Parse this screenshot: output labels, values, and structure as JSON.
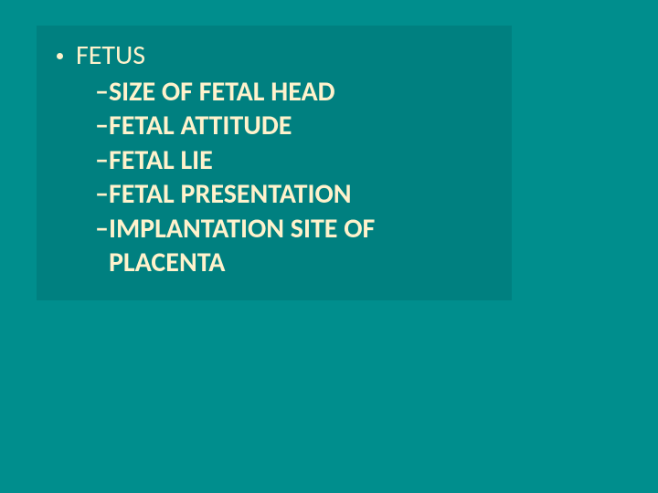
{
  "colors": {
    "background": "#008e8d",
    "box_background": "#008080",
    "text": "#fff2cc"
  },
  "typography": {
    "heading_fontsize": 30,
    "item_fontsize": 30,
    "item_fontweight": 700
  },
  "slide": {
    "heading": "FETUS",
    "dash": "–",
    "items": [
      "SIZE OF FETAL HEAD",
      "FETAL ATTITUDE",
      "FETAL LIE",
      "FETAL PRESENTATION",
      "IMPLANTATION SITE OF PLACENTA"
    ]
  }
}
